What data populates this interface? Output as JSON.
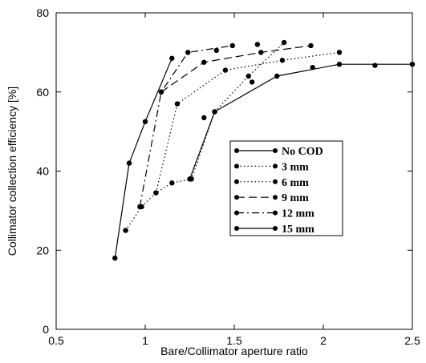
{
  "chart_data": {
    "type": "line",
    "xlabel": "Bare/Collimator aperture ratio",
    "ylabel": "Collimator collection efficiency [%]",
    "xlim": [
      0.5,
      2.5
    ],
    "ylim": [
      0,
      80
    ],
    "xticks": [
      0.5,
      1,
      1.5,
      2,
      2.5
    ],
    "yticks": [
      0,
      20,
      40,
      60,
      80
    ],
    "xtick_labels": [
      "0.5",
      "1",
      "1.5",
      "2",
      "2.5"
    ],
    "ytick_labels": [
      "0",
      "20",
      "40",
      "60",
      "80"
    ],
    "grid": false,
    "legend_position": "center-right",
    "series": [
      {
        "name": "No COD",
        "dash": "solid",
        "x": [
          0.83,
          0.91,
          1.0,
          1.15
        ],
        "y": [
          18.0,
          42.0,
          52.5,
          68.5
        ]
      },
      {
        "name": "3 mm",
        "dash": "dotted",
        "x": [
          0.89,
          0.98,
          1.06,
          1.15,
          1.26,
          1.39,
          1.58,
          1.78
        ],
        "y": [
          25.0,
          31.0,
          34.5,
          37.0,
          38.0,
          55.0,
          64.0,
          72.5
        ]
      },
      {
        "name": "6 mm",
        "dash": "dotted",
        "x": [
          1.06,
          1.18,
          1.45,
          1.77,
          2.09
        ],
        "y": [
          34.5,
          57.0,
          65.5,
          68.0,
          70.0
        ]
      },
      {
        "name": "9 mm",
        "dash": "dashed",
        "x": [
          1.09,
          1.33,
          1.65,
          1.93
        ],
        "y": [
          60.0,
          67.5,
          70.0,
          71.7
        ]
      },
      {
        "name": "12 mm",
        "dash": "dashdot",
        "x": [
          0.97,
          1.09,
          1.24,
          1.49
        ],
        "y": [
          31.0,
          60.0,
          70.0,
          71.7
        ]
      },
      {
        "name": "15 mm",
        "dash": "solid",
        "x": [
          1.25,
          1.39,
          1.74,
          2.09,
          2.5
        ],
        "y": [
          38.0,
          55.0,
          64.0,
          67.0,
          67.0
        ]
      }
    ],
    "extra_markers": [
      {
        "x": 1.33,
        "y": 53.5
      },
      {
        "x": 1.6,
        "y": 62.5
      },
      {
        "x": 1.94,
        "y": 66.2
      },
      {
        "x": 2.29,
        "y": 66.7
      },
      {
        "x": 1.4,
        "y": 70.5
      },
      {
        "x": 1.63,
        "y": 72.0
      }
    ]
  }
}
